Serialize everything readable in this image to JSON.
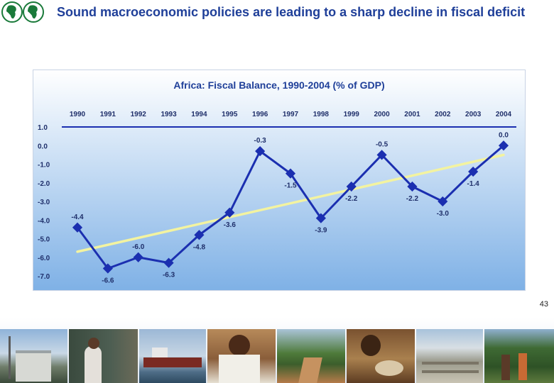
{
  "slide": {
    "title": "Sound macroeconomic policies are leading to a sharp decline in fiscal deficit",
    "page_number": "43"
  },
  "colors": {
    "title": "#1f3f99",
    "series": "#1b2fb0",
    "trend": "#f3f3a0",
    "chart_bg_top": "#ffffff",
    "chart_bg_bottom": "#7fb1e6"
  },
  "photos": [
    "port-building",
    "child-at-blackboard",
    "cargo-ship",
    "schoolboy-writing",
    "dirt-road",
    "woman-cooking",
    "salt-pans",
    "villagers-in-forest"
  ],
  "chart_data": {
    "type": "line",
    "title": "Africa: Fiscal Balance, 1990-2004 (% of GDP)",
    "x": [
      "1990",
      "1991",
      "1992",
      "1993",
      "1994",
      "1995",
      "1996",
      "1997",
      "1998",
      "1999",
      "2000",
      "2001",
      "2002",
      "2003",
      "2004"
    ],
    "series": [
      {
        "values": [
          -4.4,
          -6.6,
          -6.0,
          -6.3,
          -4.8,
          -3.6,
          -0.3,
          -1.5,
          -3.9,
          -2.2,
          -0.5,
          -2.2,
          -3.0,
          -1.4,
          0.0
        ],
        "labels": [
          "-4.4",
          "-6.6",
          "-6.0",
          "-6.3",
          "-4.8",
          "-3.6",
          "-0.3",
          "-1.5",
          "-3.9",
          "-2.2",
          "-0.5",
          "-2.2",
          "-3.0",
          "-1.4",
          "0.0"
        ]
      }
    ],
    "trendline": {
      "type": "linear",
      "start": -5.7,
      "end": -0.5
    },
    "y_ticks": [
      "1.0",
      "0.0",
      "-1.0",
      "-2.0",
      "-3.0",
      "-4.0",
      "-5.0",
      "-6.0",
      "-7.0"
    ],
    "ylim": [
      -7.0,
      1.0
    ],
    "x_axis_position": "top",
    "grid": false,
    "legend": "none"
  }
}
